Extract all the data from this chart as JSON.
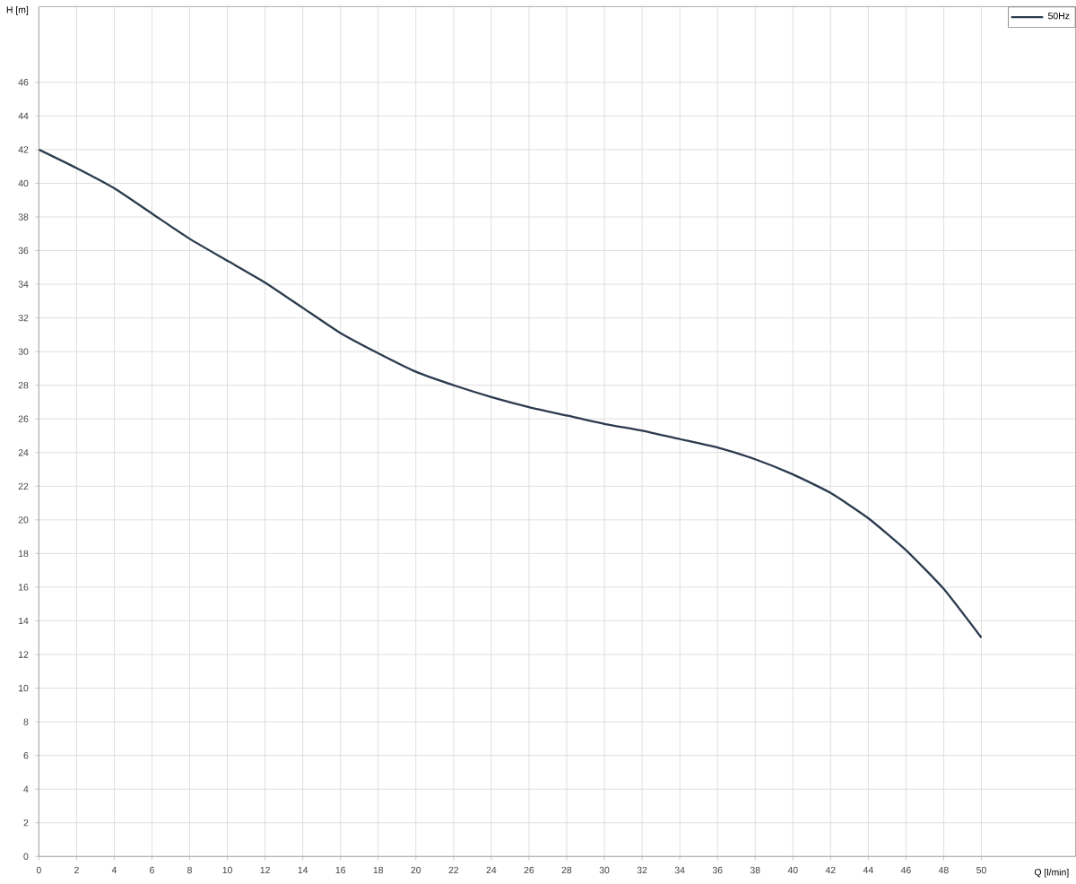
{
  "chart_data": {
    "type": "line",
    "xlabel": "Q [l/min]",
    "ylabel": "H [m]",
    "x": [
      0,
      2,
      4,
      6,
      8,
      10,
      12,
      14,
      16,
      18,
      20,
      22,
      24,
      26,
      28,
      30,
      32,
      34,
      36,
      38,
      40,
      42,
      44,
      46,
      48,
      50
    ],
    "series": [
      {
        "name": "50Hz",
        "color": "#2b3a4e",
        "values": [
          42,
          40.9,
          39.7,
          38.2,
          36.7,
          35.4,
          34.1,
          32.6,
          31.1,
          29.9,
          28.8,
          28.0,
          27.3,
          26.7,
          26.2,
          25.7,
          25.3,
          24.8,
          24.3,
          23.6,
          22.7,
          21.6,
          20.1,
          18.2,
          15.9,
          13
        ]
      }
    ],
    "xlim": [
      0,
      55
    ],
    "ylim": [
      0,
      50.5
    ],
    "xticks": [
      0,
      2,
      4,
      6,
      8,
      10,
      12,
      14,
      16,
      18,
      20,
      22,
      24,
      26,
      28,
      30,
      32,
      34,
      36,
      38,
      40,
      42,
      44,
      46,
      48,
      50
    ],
    "yticks": [
      0,
      2,
      4,
      6,
      8,
      10,
      12,
      14,
      16,
      18,
      20,
      22,
      24,
      26,
      28,
      30,
      32,
      34,
      36,
      38,
      40,
      42,
      44,
      46
    ],
    "grid": true,
    "legend": "top right",
    "marker": "none",
    "line_style": "solid"
  }
}
